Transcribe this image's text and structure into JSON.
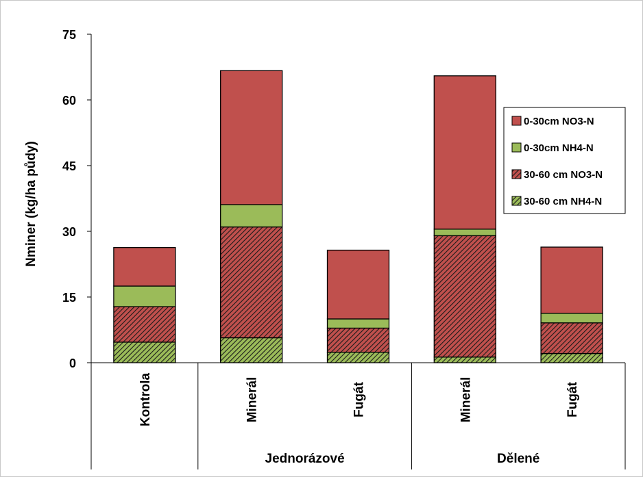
{
  "chart_data": {
    "type": "bar",
    "stacked": true,
    "ylabel": "Nminer (kg/ha půdy)",
    "xlabel": "",
    "ylim": [
      0,
      75
    ],
    "yticks": [
      0,
      15,
      30,
      45,
      60,
      75
    ],
    "grid": false,
    "legend_position": "right",
    "categories": [
      "Kontrola",
      "Minerál",
      "Fugát",
      "Minerál",
      "Fugát"
    ],
    "groups": [
      {
        "label": "",
        "categories": [
          0
        ]
      },
      {
        "label": "Jednorázové",
        "categories": [
          1,
          2
        ]
      },
      {
        "label": "Dělené",
        "categories": [
          3,
          4
        ]
      }
    ],
    "series": [
      {
        "name": "30-60 cm NH4-N",
        "color": "#9bbb59",
        "pattern": "hatched",
        "values": [
          4.7,
          5.7,
          2.4,
          1.3,
          2.1
        ]
      },
      {
        "name": "30-60 cm NO3-N",
        "color": "#c0504d",
        "pattern": "hatched",
        "values": [
          8.1,
          25.3,
          5.5,
          27.7,
          7.0
        ]
      },
      {
        "name": "0-30cm NH4-N",
        "color": "#9bbb59",
        "pattern": "solid",
        "values": [
          4.7,
          5.1,
          2.1,
          1.5,
          2.2
        ]
      },
      {
        "name": "0-30cm NO3-N",
        "color": "#c0504d",
        "pattern": "solid",
        "values": [
          8.8,
          30.6,
          15.7,
          35.0,
          15.1
        ]
      }
    ],
    "legend_order": [
      "0-30cm NO3-N",
      "0-30cm NH4-N",
      "30-60 cm NO3-N",
      "30-60 cm NH4-N"
    ]
  }
}
